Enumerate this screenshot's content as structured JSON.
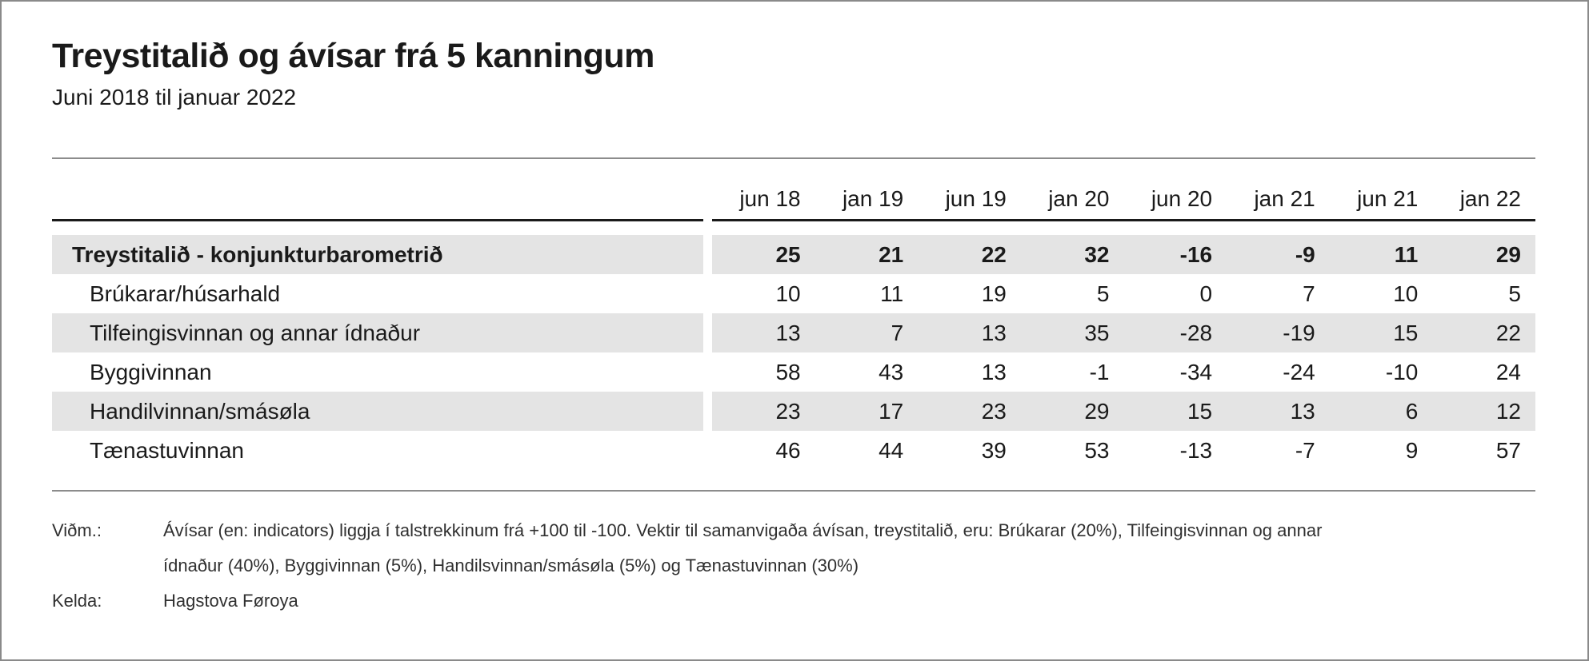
{
  "header": {
    "title": "Treystitalið og ávísar frá 5 kanningum",
    "subtitle": "Juni 2018 til januar 2022"
  },
  "colors": {
    "row_band": "#e4e4e4",
    "rule_dark": "#1a1a1a",
    "rule_light": "#8c8c8c",
    "outer_border": "#8a8a8a",
    "text": "#1a1a1a"
  },
  "chart_data": {
    "type": "table",
    "title": "Treystitalið og ávísar frá 5 kanningum",
    "subtitle": "Juni 2018 til januar 2022",
    "value_range_note": "+100 til -100",
    "columns": [
      "jun 18",
      "jan 19",
      "jun 19",
      "jan 20",
      "jun 20",
      "jan 21",
      "jun 21",
      "jan 22"
    ],
    "rows": [
      {
        "label": "Treystitalið - konjunkturbarometrið",
        "bold": true,
        "values": [
          25,
          21,
          22,
          32,
          -16,
          -9,
          11,
          29
        ]
      },
      {
        "label": "Brúkarar/húsarhald",
        "bold": false,
        "values": [
          10,
          11,
          19,
          5,
          0,
          7,
          10,
          5
        ]
      },
      {
        "label": "Tilfeingisvinnan og annar ídnaður",
        "bold": false,
        "values": [
          13,
          7,
          13,
          35,
          -28,
          -19,
          15,
          22
        ]
      },
      {
        "label": "Byggivinnan",
        "bold": false,
        "values": [
          58,
          43,
          13,
          -1,
          -34,
          -24,
          -10,
          24
        ]
      },
      {
        "label": "Handilvinnan/smásøla",
        "bold": false,
        "values": [
          23,
          17,
          23,
          29,
          15,
          13,
          6,
          12
        ]
      },
      {
        "label": "Tænastuvinnan",
        "bold": false,
        "values": [
          46,
          44,
          39,
          53,
          -13,
          -7,
          9,
          57
        ]
      }
    ]
  },
  "footnotes": {
    "note_label": "Viðm.:",
    "note_text": "Ávísar (en: indicators) liggja í talstrekkinum frá +100 til -100. Vektir til samanvigaða ávísan, treystitalið, eru: Brúkarar (20%), Tilfeingisvinnan og annar ídnaður (40%), Byggivinnan (5%), Handilsvinnan/smásøla (5%) og Tænastuvinnan (30%)",
    "note_lines": [
      "Ávísar (en: indicators) liggja í talstrekkinum frá +100 til -100. Vektir til samanvigaða ávísan, treystitalið, eru: Brúkarar (20%), Tilfeingisvinnan og annar",
      "ídnaður (40%), Byggivinnan (5%), Handilsvinnan/smásøla (5%) og Tænastuvinnan (30%)"
    ],
    "source_label": "Kelda:",
    "source_text": "Hagstova Føroya"
  }
}
